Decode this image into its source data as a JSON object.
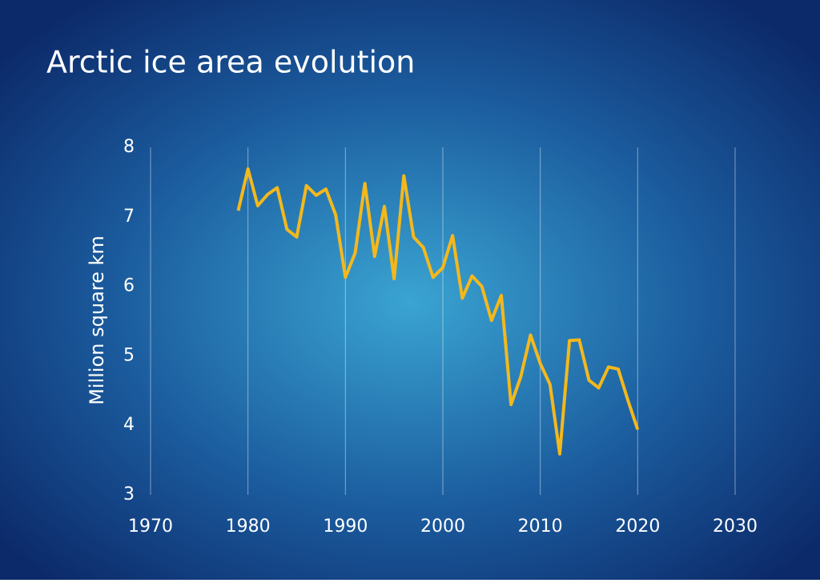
{
  "chart_data": {
    "type": "line",
    "title": "Arctic ice area evolution",
    "y_label": "Million square km",
    "x": [
      1979,
      1980,
      1981,
      1982,
      1983,
      1984,
      1985,
      1986,
      1987,
      1988,
      1989,
      1990,
      1991,
      1992,
      1993,
      1994,
      1995,
      1996,
      1997,
      1998,
      1999,
      2000,
      2001,
      2002,
      2003,
      2004,
      2005,
      2006,
      2007,
      2008,
      2009,
      2010,
      2011,
      2012,
      2013,
      2014,
      2015,
      2016,
      2017,
      2018,
      2019,
      2020
    ],
    "series": [
      {
        "color": "#f4b81c",
        "values": [
          7.09,
          7.69,
          7.16,
          7.32,
          7.42,
          6.82,
          6.71,
          7.45,
          7.31,
          7.4,
          7.03,
          6.13,
          6.48,
          7.48,
          6.43,
          7.15,
          6.11,
          7.59,
          6.71,
          6.56,
          6.13,
          6.27,
          6.73,
          5.83,
          6.15,
          6.0,
          5.51,
          5.87,
          4.3,
          4.7,
          5.3,
          4.89,
          4.59,
          3.59,
          5.22,
          5.23,
          4.65,
          4.54,
          4.84,
          4.81,
          4.36,
          3.94
        ]
      }
    ],
    "xlim": [
      1970,
      2030
    ],
    "xticks": [
      1970,
      1980,
      1990,
      2000,
      2010,
      2020,
      2030
    ],
    "ylim": [
      3,
      8
    ],
    "yticks": [
      3,
      4,
      5,
      6,
      7,
      8
    ],
    "grid": true
  }
}
